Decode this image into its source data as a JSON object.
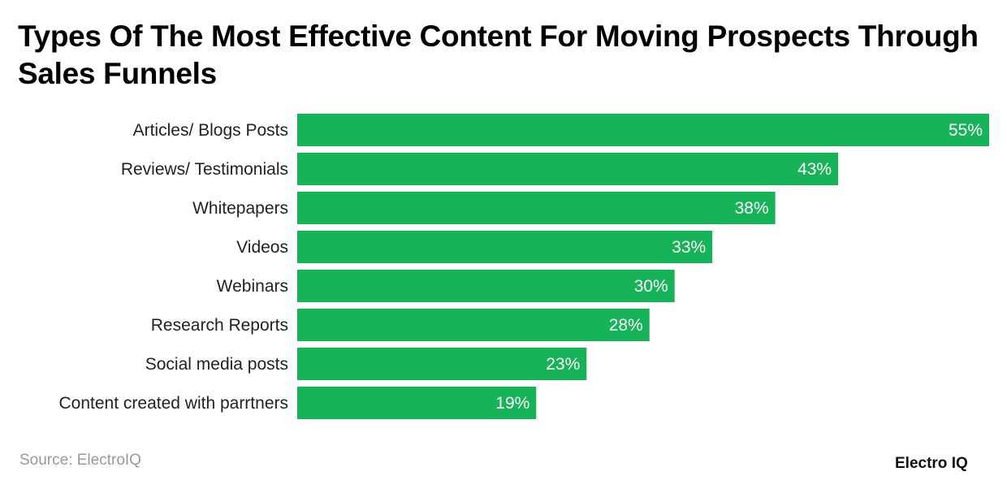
{
  "title": "Types Of The Most Effective Content For Moving Prospects Through Sales Funnels",
  "source": "Source: ElectroIQ",
  "logo": "Electro IQ",
  "colors": {
    "bar": "#16b358",
    "label": "#222222",
    "value": "#ffffff"
  },
  "chart_data": {
    "type": "bar",
    "orientation": "horizontal",
    "title": "Types Of The Most Effective Content For Moving Prospects Through Sales Funnels",
    "categories": [
      "Articles/ Blogs Posts",
      "Reviews/ Testimonials",
      "Whitepapers",
      "Videos",
      "Webinars",
      "Research Reports",
      "Social media posts",
      "Content created with parrtners"
    ],
    "values": [
      55,
      43,
      38,
      33,
      30,
      28,
      23,
      19
    ],
    "value_labels": [
      "55%",
      "43%",
      "38%",
      "33%",
      "30%",
      "28%",
      "23%",
      "19%"
    ],
    "xlim": [
      0,
      55
    ],
    "grid": false
  }
}
